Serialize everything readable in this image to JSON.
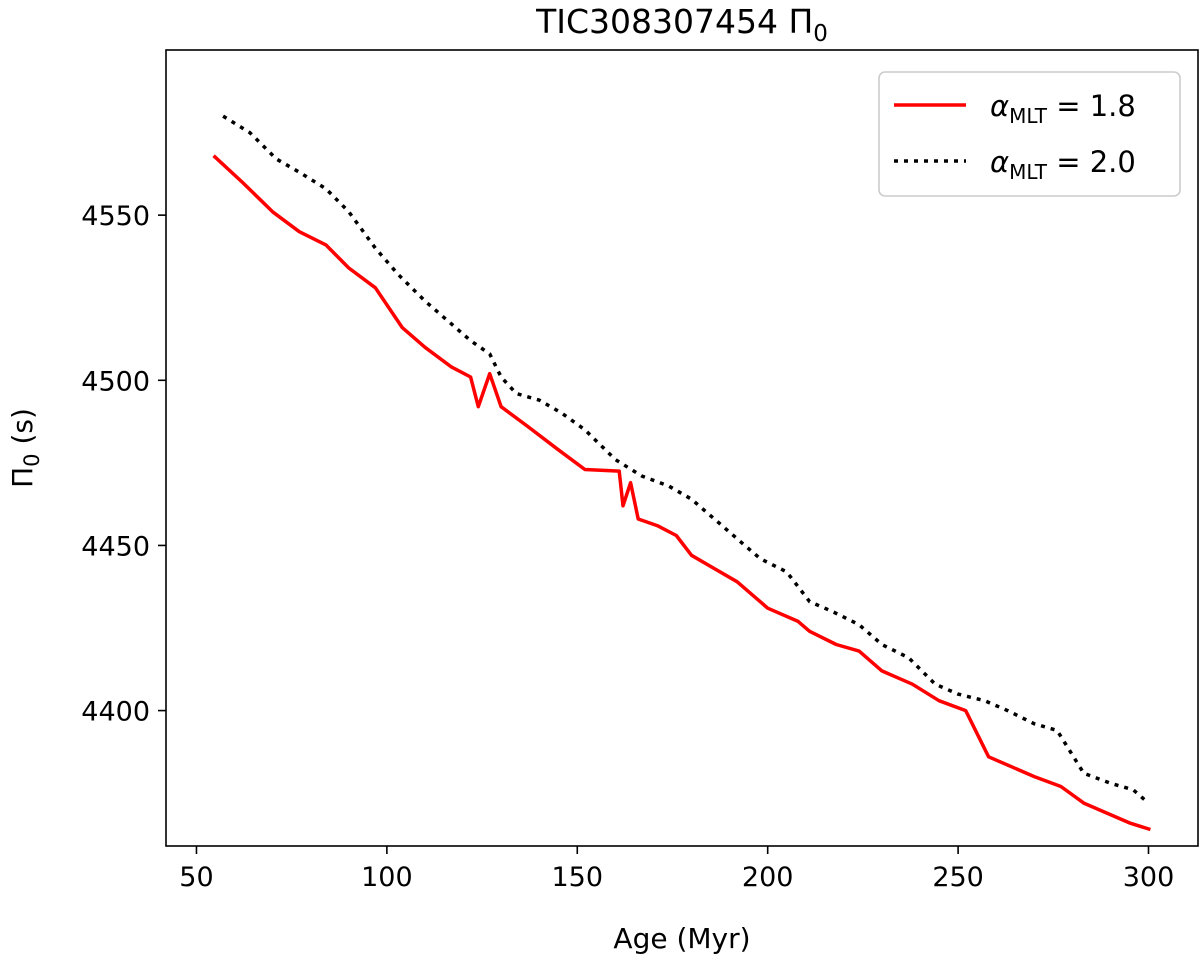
{
  "chart_data": {
    "type": "line",
    "title": "TIC308307454 Π",
    "title_sub": "0",
    "xlabel": "Age (Myr)",
    "ylabel_main": "Π",
    "ylabel_sub": "0",
    "ylabel_rest": " (s)",
    "xlim": [
      42,
      313
    ],
    "ylim": [
      4359,
      4600
    ],
    "xticks": [
      50,
      100,
      150,
      200,
      250,
      300
    ],
    "yticks": [
      4400,
      4450,
      4500,
      4550
    ],
    "legend_position": "top-right",
    "series": [
      {
        "name": "α_MLT = 1.8",
        "legend_symbol": "α",
        "legend_sub": "MLT",
        "legend_value": " = 1.8",
        "color": "#ff0000",
        "style": "solid",
        "points": [
          [
            54.5,
            4568
          ],
          [
            62,
            4560
          ],
          [
            70,
            4551
          ],
          [
            77,
            4545
          ],
          [
            84,
            4541
          ],
          [
            90,
            4534
          ],
          [
            97,
            4528
          ],
          [
            104,
            4516
          ],
          [
            110,
            4510
          ],
          [
            117,
            4504
          ],
          [
            122,
            4501
          ],
          [
            124,
            4492
          ],
          [
            127,
            4502
          ],
          [
            130,
            4492
          ],
          [
            137,
            4486
          ],
          [
            145,
            4479
          ],
          [
            152,
            4473
          ],
          [
            161,
            4472.5
          ],
          [
            162,
            4462
          ],
          [
            164,
            4469
          ],
          [
            166,
            4458
          ],
          [
            171,
            4456
          ],
          [
            176,
            4453
          ],
          [
            180,
            4447
          ],
          [
            186,
            4443
          ],
          [
            192,
            4439
          ],
          [
            197,
            4434
          ],
          [
            200,
            4431
          ],
          [
            208,
            4427
          ],
          [
            211,
            4424
          ],
          [
            218,
            4420
          ],
          [
            224,
            4418
          ],
          [
            230,
            4412
          ],
          [
            238,
            4408
          ],
          [
            245,
            4403
          ],
          [
            252,
            4400
          ],
          [
            258,
            4386
          ],
          [
            264,
            4383
          ],
          [
            270,
            4380
          ],
          [
            277,
            4377
          ],
          [
            283,
            4372
          ],
          [
            289,
            4369
          ],
          [
            295,
            4366
          ],
          [
            300.5,
            4364
          ]
        ]
      },
      {
        "name": "α_MLT = 2.0",
        "legend_symbol": "α",
        "legend_sub": "MLT",
        "legend_value": " = 2.0",
        "color": "#000000",
        "style": "dotted",
        "points": [
          [
            57,
            4580
          ],
          [
            64,
            4575
          ],
          [
            71,
            4567
          ],
          [
            77,
            4563
          ],
          [
            84,
            4558
          ],
          [
            90,
            4551
          ],
          [
            97,
            4540
          ],
          [
            103,
            4532
          ],
          [
            110,
            4524
          ],
          [
            117,
            4517
          ],
          [
            122,
            4512
          ],
          [
            127,
            4508
          ],
          [
            130,
            4501
          ],
          [
            134,
            4496
          ],
          [
            140,
            4494
          ],
          [
            146,
            4490
          ],
          [
            152,
            4485
          ],
          [
            160,
            4476
          ],
          [
            167,
            4471
          ],
          [
            174,
            4468
          ],
          [
            180,
            4464
          ],
          [
            186,
            4458
          ],
          [
            192,
            4452
          ],
          [
            198,
            4446
          ],
          [
            205,
            4442
          ],
          [
            211,
            4433
          ],
          [
            217,
            4430
          ],
          [
            224,
            4426
          ],
          [
            230,
            4420
          ],
          [
            237,
            4416
          ],
          [
            244,
            4408
          ],
          [
            250,
            4405
          ],
          [
            257,
            4403
          ],
          [
            263,
            4400
          ],
          [
            270,
            4396
          ],
          [
            276,
            4394
          ],
          [
            283,
            4381
          ],
          [
            290,
            4378
          ],
          [
            296,
            4376
          ],
          [
            300,
            4372
          ]
        ]
      }
    ]
  }
}
